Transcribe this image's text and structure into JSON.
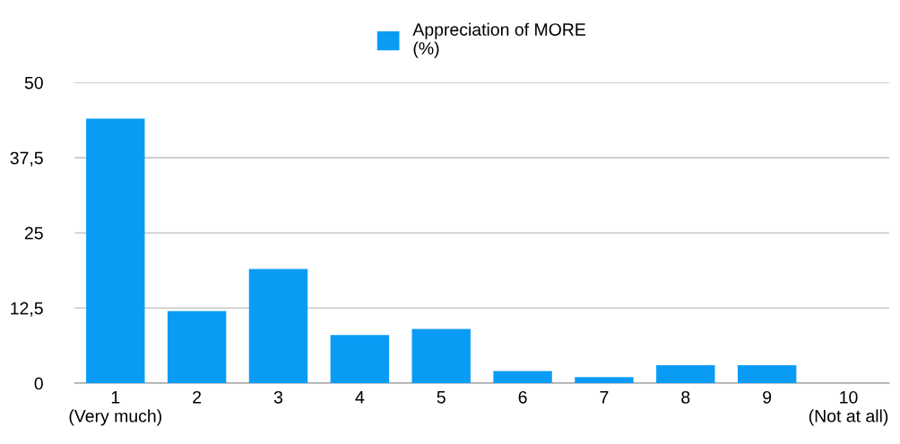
{
  "chart_data": {
    "type": "bar",
    "categories": [
      "1\n(Very much)",
      "2",
      "3",
      "4",
      "5",
      "6",
      "7",
      "8",
      "9",
      "10\n(Not at all)"
    ],
    "series": [
      {
        "name": "Appreciation of MORE\n(%)",
        "color": "#0a9cf5",
        "values": [
          44,
          12,
          19,
          8,
          9,
          2,
          1,
          3,
          3,
          0
        ]
      }
    ],
    "ylim": [
      0,
      50
    ],
    "yticks": [
      0,
      {
        "value": 12.5,
        "label": "12,5"
      },
      25,
      {
        "value": 37.5,
        "label": "37,5"
      },
      50
    ],
    "grid": "y",
    "legend": "top"
  }
}
